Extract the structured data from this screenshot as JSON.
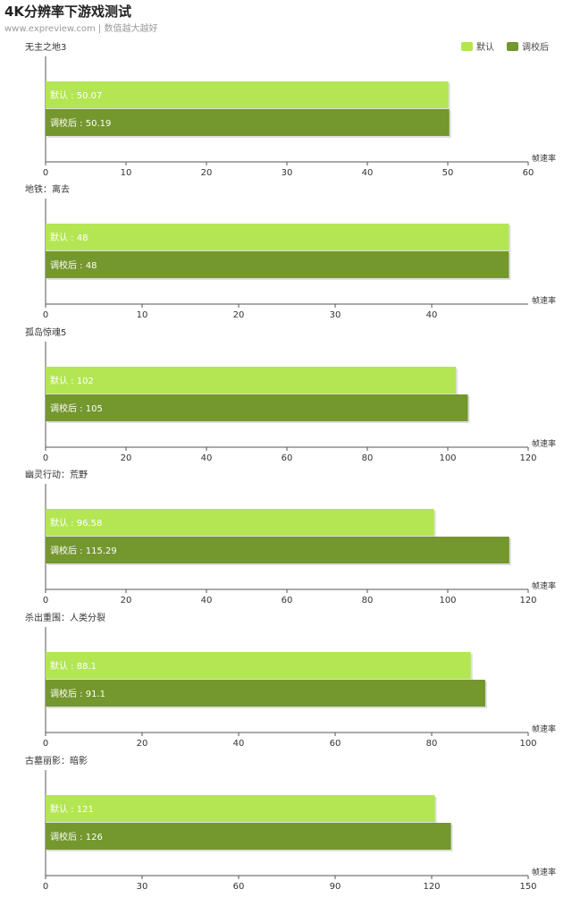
{
  "title": "4K分辨率下游戏测试",
  "subtitle": "www.expreview.com | 数值越大越好",
  "colors": {
    "default": "#b3e652",
    "tuned": "#74972e"
  },
  "legend": [
    {
      "label": "默认",
      "color": "#b3e652"
    },
    {
      "label": "调校后",
      "color": "#74972e"
    }
  ],
  "chart_data": [
    {
      "type": "bar",
      "orientation": "horizontal",
      "title": "无主之地3",
      "xlabel": "帧速率",
      "xlim": [
        0,
        60
      ],
      "ticks": [
        0,
        10,
        20,
        30,
        40,
        50,
        60
      ],
      "series": [
        {
          "name": "默认",
          "label": "默认 : 50.07",
          "value": 50.07
        },
        {
          "name": "调校后",
          "label": "调校后 : 50.19",
          "value": 50.19
        }
      ]
    },
    {
      "type": "bar",
      "orientation": "horizontal",
      "title": "地铁：离去",
      "xlabel": "帧速率",
      "xlim": [
        0,
        50
      ],
      "ticks": [
        0,
        10,
        20,
        30,
        40
      ],
      "series": [
        {
          "name": "默认",
          "label": "默认 : 48",
          "value": 48
        },
        {
          "name": "调校后",
          "label": "调校后 : 48",
          "value": 48
        }
      ]
    },
    {
      "type": "bar",
      "orientation": "horizontal",
      "title": "孤岛惊魂5",
      "xlabel": "帧速率",
      "xlim": [
        0,
        120
      ],
      "ticks": [
        0,
        20,
        40,
        60,
        80,
        100,
        120
      ],
      "series": [
        {
          "name": "默认",
          "label": "默认 : 102",
          "value": 102
        },
        {
          "name": "调校后",
          "label": "调校后 : 105",
          "value": 105
        }
      ]
    },
    {
      "type": "bar",
      "orientation": "horizontal",
      "title": "幽灵行动：荒野",
      "xlabel": "帧速率",
      "xlim": [
        0,
        120
      ],
      "ticks": [
        0,
        20,
        40,
        60,
        80,
        100,
        120
      ],
      "series": [
        {
          "name": "默认",
          "label": "默认 : 96.58",
          "value": 96.58
        },
        {
          "name": "调校后",
          "label": "调校后 : 115.29",
          "value": 115.29
        }
      ]
    },
    {
      "type": "bar",
      "orientation": "horizontal",
      "title": "杀出重围：人类分裂",
      "xlabel": "帧速率",
      "xlim": [
        0,
        100
      ],
      "ticks": [
        0,
        20,
        40,
        60,
        80,
        100
      ],
      "series": [
        {
          "name": "默认",
          "label": "默认 : 88.1",
          "value": 88.1
        },
        {
          "name": "调校后",
          "label": "调校后 : 91.1",
          "value": 91.1
        }
      ]
    },
    {
      "type": "bar",
      "orientation": "horizontal",
      "title": "古墓丽影：暗影",
      "xlabel": "帧速率",
      "xlim": [
        0,
        150
      ],
      "ticks": [
        0,
        30,
        60,
        90,
        120,
        150
      ],
      "series": [
        {
          "name": "默认",
          "label": "默认 : 121",
          "value": 121
        },
        {
          "name": "调校后",
          "label": "调校后 : 126",
          "value": 126
        }
      ]
    }
  ]
}
